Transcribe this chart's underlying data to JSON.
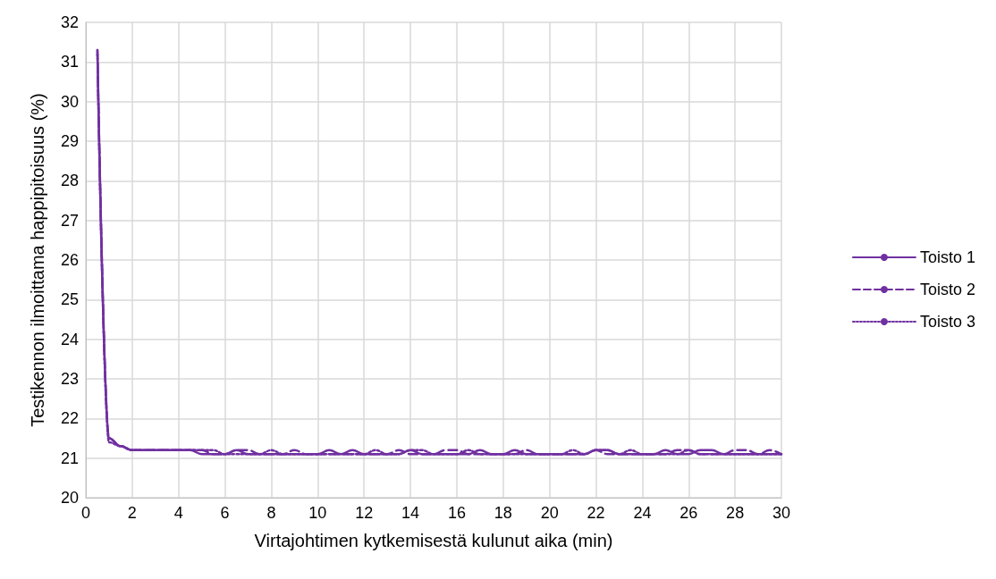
{
  "chart_data": {
    "type": "line",
    "xlabel": "Virtajohtimen kytkemisestä kulunut aika (min)",
    "ylabel": "Testikennon ilmoittama happipitoisuus (%)",
    "x": [
      0.5,
      1,
      1.5,
      2,
      2.5,
      3,
      3.5,
      4,
      4.5,
      5,
      5.5,
      6,
      6.5,
      7,
      7.5,
      8,
      8.5,
      9,
      9.5,
      10,
      10.5,
      11,
      11.5,
      12,
      12.5,
      13,
      13.5,
      14,
      14.5,
      15,
      15.5,
      16,
      16.5,
      17,
      17.5,
      18,
      18.5,
      19,
      19.5,
      20,
      20.5,
      21,
      21.5,
      22,
      22.5,
      23,
      23.5,
      24,
      24.5,
      25,
      25.5,
      26,
      26.5,
      27,
      27.5,
      28,
      28.5,
      29,
      29.5,
      30
    ],
    "xlim": [
      0,
      30
    ],
    "xticks": [
      0,
      2,
      4,
      6,
      8,
      10,
      12,
      14,
      16,
      18,
      20,
      22,
      24,
      26,
      28,
      30
    ],
    "ylim": [
      20,
      32
    ],
    "yticks": [
      20,
      21,
      22,
      23,
      24,
      25,
      26,
      27,
      28,
      29,
      30,
      31,
      32
    ],
    "grid": true,
    "legend": "right",
    "marker": "none",
    "series": [
      {
        "name": "Toisto 1",
        "color": "#7030a0",
        "line_style": "solid",
        "values": [
          31.3,
          21.5,
          21.3,
          21.2,
          21.2,
          21.2,
          21.2,
          21.2,
          21.2,
          21.1,
          21.1,
          21.1,
          21.2,
          21.1,
          21.1,
          21.1,
          21.1,
          21.1,
          21.1,
          21.1,
          21.2,
          21.1,
          21.2,
          21.1,
          21.1,
          21.1,
          21.1,
          21.2,
          21.1,
          21.1,
          21.1,
          21.1,
          21.1,
          21.2,
          21.1,
          21.1,
          21.2,
          21.1,
          21.1,
          21.1,
          21.1,
          21.1,
          21.1,
          21.2,
          21.2,
          21.1,
          21.1,
          21.1,
          21.1,
          21.2,
          21.1,
          21.1,
          21.2,
          21.2,
          21.1,
          21.1,
          21.1,
          21.1,
          21.1,
          21.1
        ]
      },
      {
        "name": "Toisto 2",
        "color": "#7030a0",
        "line_style": "dashed",
        "values": [
          31.3,
          21.5,
          21.3,
          21.2,
          21.2,
          21.2,
          21.2,
          21.2,
          21.2,
          21.2,
          21.1,
          21.1,
          21.2,
          21.2,
          21.1,
          21.1,
          21.1,
          21.2,
          21.1,
          21.1,
          21.1,
          21.1,
          21.1,
          21.1,
          21.1,
          21.1,
          21.2,
          21.1,
          21.1,
          21.1,
          21.2,
          21.2,
          21.1,
          21.1,
          21.1,
          21.1,
          21.1,
          21.2,
          21.1,
          21.1,
          21.1,
          21.1,
          21.1,
          21.2,
          21.1,
          21.1,
          21.1,
          21.1,
          21.1,
          21.1,
          21.2,
          21.2,
          21.1,
          21.1,
          21.1,
          21.2,
          21.2,
          21.1,
          21.2,
          21.1
        ]
      },
      {
        "name": "Toisto 3",
        "color": "#7030a0",
        "line_style": "dotted",
        "values": [
          31.2,
          21.4,
          21.3,
          21.2,
          21.2,
          21.2,
          21.2,
          21.2,
          21.2,
          21.2,
          21.2,
          21.1,
          21.1,
          21.1,
          21.1,
          21.2,
          21.1,
          21.1,
          21.1,
          21.1,
          21.1,
          21.1,
          21.1,
          21.1,
          21.2,
          21.1,
          21.1,
          21.2,
          21.2,
          21.1,
          21.1,
          21.1,
          21.2,
          21.1,
          21.1,
          21.1,
          21.1,
          21.1,
          21.1,
          21.1,
          21.1,
          21.2,
          21.1,
          21.2,
          21.2,
          21.1,
          21.2,
          21.1,
          21.1,
          21.1,
          21.1,
          21.2,
          21.1,
          21.1,
          21.1,
          21.1,
          21.1,
          21.1,
          21.1,
          21.1
        ]
      }
    ]
  }
}
